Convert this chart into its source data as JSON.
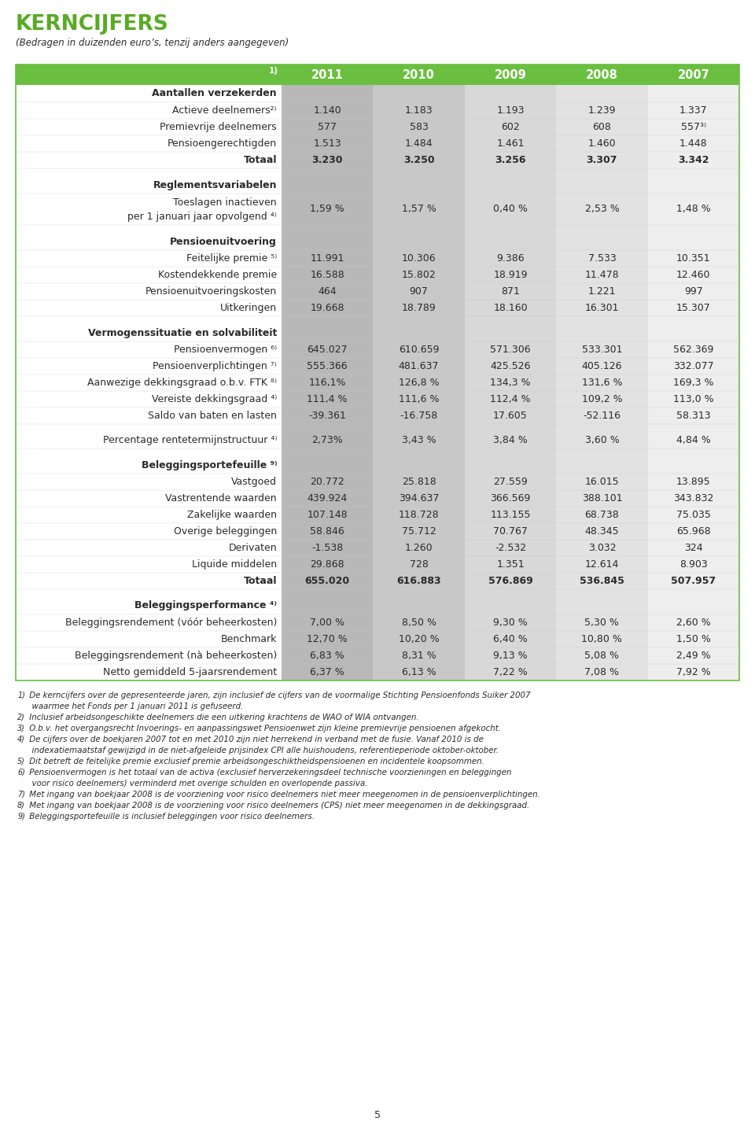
{
  "title": "KERNCIJFERS",
  "subtitle": "(Bedragen in duizenden euro’s, tenzij anders aangegeven)",
  "green": "#6abf40",
  "text_green": "#5aaa25",
  "text_dark": "#2a2a2a",
  "col_colors": [
    "#b8b8b8",
    "#c8c8c8",
    "#d8d8d8",
    "#e2e2e2",
    "#eeeeee"
  ],
  "years": [
    "2011",
    "2010",
    "2009",
    "2008",
    "2007"
  ],
  "rows": [
    {
      "label": "Aantallen verzekerden",
      "type": "header",
      "values": [
        "",
        "",
        "",
        "",
        ""
      ]
    },
    {
      "label": "Actieve deelnemers²⁾",
      "type": "data",
      "values": [
        "1.140",
        "1.183",
        "1.193",
        "1.239",
        "1.337"
      ]
    },
    {
      "label": "Premievrije deelnemers",
      "type": "data",
      "values": [
        "577",
        "583",
        "602",
        "608",
        "557³⁾"
      ]
    },
    {
      "label": "Pensioengerechtigden",
      "type": "data",
      "values": [
        "1.513",
        "1.484",
        "1.461",
        "1.460",
        "1.448"
      ]
    },
    {
      "label": "Totaal",
      "type": "total",
      "values": [
        "3.230",
        "3.250",
        "3.256",
        "3.307",
        "3.342"
      ]
    },
    {
      "label": "",
      "type": "spacer",
      "values": [
        "",
        "",
        "",
        "",
        ""
      ]
    },
    {
      "label": "Reglementsvariabelen",
      "type": "header",
      "values": [
        "",
        "",
        "",
        "",
        ""
      ]
    },
    {
      "label": "Toeslagen inactieven\nper 1 januari jaar opvolgend ⁴⁾",
      "type": "data_ml",
      "values": [
        "1,59 %",
        "1,57 %",
        "0,40 %",
        "2,53 %",
        "1,48 %"
      ]
    },
    {
      "label": "",
      "type": "spacer",
      "values": [
        "",
        "",
        "",
        "",
        ""
      ]
    },
    {
      "label": "Pensioenuitvoering",
      "type": "header",
      "values": [
        "",
        "",
        "",
        "",
        ""
      ]
    },
    {
      "label": "Feitelijke premie ⁵⁾",
      "type": "data",
      "values": [
        "11.991",
        "10.306",
        "9.386",
        "7.533",
        "10.351"
      ]
    },
    {
      "label": "Kostendekkende premie",
      "type": "data",
      "values": [
        "16.588",
        "15.802",
        "18.919",
        "11.478",
        "12.460"
      ]
    },
    {
      "label": "Pensioenuitvoeringskosten",
      "type": "data",
      "values": [
        "464",
        "907",
        "871",
        "1.221",
        "997"
      ]
    },
    {
      "label": "Uitkeringen",
      "type": "data",
      "values": [
        "19.668",
        "18.789",
        "18.160",
        "16.301",
        "15.307"
      ]
    },
    {
      "label": "",
      "type": "spacer",
      "values": [
        "",
        "",
        "",
        "",
        ""
      ]
    },
    {
      "label": "Vermogenssituatie en solvabiliteit",
      "type": "header",
      "values": [
        "",
        "",
        "",
        "",
        ""
      ]
    },
    {
      "label": "Pensioenvermogen ⁶⁾",
      "type": "data",
      "values": [
        "645.027",
        "610.659",
        "571.306",
        "533.301",
        "562.369"
      ]
    },
    {
      "label": "Pensioenverplichtingen ⁷⁾",
      "type": "data",
      "values": [
        "555.366",
        "481.637",
        "425.526",
        "405.126",
        "332.077"
      ]
    },
    {
      "label": "Aanwezige dekkingsgraad o.b.v. FTK ⁸⁾",
      "type": "data",
      "values": [
        "116,1%",
        "126,8 %",
        "134,3 %",
        "131,6 %",
        "169,3 %"
      ]
    },
    {
      "label": "Vereiste dekkingsgraad ⁴⁾",
      "type": "data",
      "values": [
        "111,4 %",
        "111,6 %",
        "112,4 %",
        "109,2 %",
        "113,0 %"
      ]
    },
    {
      "label": "Saldo van baten en lasten",
      "type": "data",
      "values": [
        "-39.361",
        "-16.758",
        "17.605",
        "-52.116",
        "58.313"
      ]
    },
    {
      "label": "",
      "type": "spacer",
      "values": [
        "",
        "",
        "",
        "",
        ""
      ]
    },
    {
      "label": "Percentage rentetermijnstructuur ⁴⁾",
      "type": "data",
      "values": [
        "2,73%",
        "3,43 %",
        "3,84 %",
        "3,60 %",
        "4,84 %"
      ]
    },
    {
      "label": "",
      "type": "spacer",
      "values": [
        "",
        "",
        "",
        "",
        ""
      ]
    },
    {
      "label": "Beleggingsportefeuille ⁹⁾",
      "type": "header",
      "values": [
        "",
        "",
        "",
        "",
        ""
      ]
    },
    {
      "label": "Vastgoed",
      "type": "data",
      "values": [
        "20.772",
        "25.818",
        "27.559",
        "16.015",
        "13.895"
      ]
    },
    {
      "label": "Vastrentende waarden",
      "type": "data",
      "values": [
        "439.924",
        "394.637",
        "366.569",
        "388.101",
        "343.832"
      ]
    },
    {
      "label": "Zakelijke waarden",
      "type": "data",
      "values": [
        "107.148",
        "118.728",
        "113.155",
        "68.738",
        "75.035"
      ]
    },
    {
      "label": "Overige beleggingen",
      "type": "data",
      "values": [
        "58.846",
        "75.712",
        "70.767",
        "48.345",
        "65.968"
      ]
    },
    {
      "label": "Derivaten",
      "type": "data",
      "values": [
        "-1.538",
        "1.260",
        "-2.532",
        "3.032",
        "324"
      ]
    },
    {
      "label": "Liquide middelen",
      "type": "data",
      "values": [
        "29.868",
        "728",
        "1.351",
        "12.614",
        "8.903"
      ]
    },
    {
      "label": "Totaal",
      "type": "total",
      "values": [
        "655.020",
        "616.883",
        "576.869",
        "536.845",
        "507.957"
      ]
    },
    {
      "label": "",
      "type": "spacer",
      "values": [
        "",
        "",
        "",
        "",
        ""
      ]
    },
    {
      "label": "Beleggingsperformance ⁴⁾",
      "type": "header",
      "values": [
        "",
        "",
        "",
        "",
        ""
      ]
    },
    {
      "label": "Beleggingsrendement (vóór beheerkosten)",
      "type": "data",
      "values": [
        "7,00 %",
        "8,50 %",
        "9,30 %",
        "5,30 %",
        "2,60 %"
      ]
    },
    {
      "label": "Benchmark",
      "type": "data",
      "values": [
        "12,70 %",
        "10,20 %",
        "6,40 %",
        "10,80 %",
        "1,50 %"
      ]
    },
    {
      "label": "Beleggingsrendement (nà beheerkosten)",
      "type": "data",
      "values": [
        "6,83 %",
        "8,31 %",
        "9,13 %",
        "5,08 %",
        "2,49 %"
      ]
    },
    {
      "label": "Netto gemiddeld 5-jaarsrendement",
      "type": "data",
      "values": [
        "6,37 %",
        "6,13 %",
        "7,22 %",
        "7,08 %",
        "7,92 %"
      ]
    }
  ],
  "footnotes": [
    [
      "1)",
      " De kerncijfers over de gepresenteerde jaren, zijn inclusief de cijfers van de voormalige Stichting Pensioenfonds Suiker 2007"
    ],
    [
      "",
      "  waarmee het Fonds per 1 januari 2011 is gefuseerd."
    ],
    [
      "2)",
      " Inclusief arbeidsongeschikte deelnemers die een uitkering krachtens de WAO of WIA ontvangen."
    ],
    [
      "3)",
      " O.b.v. het overgangsrecht Invoerings- en aanpassingswet Pensioenwet zijn kleine premievrije pensioenen afgekocht."
    ],
    [
      "4)",
      " De cijfers over de boekjaren 2007 tot en met 2010 zijn niet herrekend in verband met de fusie. Vanaf 2010 is de"
    ],
    [
      "",
      "  indexatiemaatstaf gewijzigd in de niet-afgeleide prijsindex CPI alle huishoudens, referentieperiode oktober-oktober."
    ],
    [
      "5)",
      " Dit betreft de feitelijke premie exclusief premie arbeidsongeschiktheidspensioenen en incidentele koopsommen."
    ],
    [
      "6)",
      " Pensioenvermogen is het totaal van de activa (exclusief herverzekeringsdeel technische voorzieningen en beleggingen"
    ],
    [
      "",
      "  voor risico deelnemers) verminderd met overige schulden en overlopende passiva."
    ],
    [
      "7)",
      " Met ingang van boekjaar 2008 is de voorziening voor risico deelnemers niet meer meegenomen in de pensioenverplichtingen."
    ],
    [
      "8)",
      " Met ingang van boekjaar 2008 is de voorziening voor risico deelnemers (CPS) niet meer meegenomen in de dekkingsgraad."
    ],
    [
      "9)",
      " Beleggingsportefeuille is inclusief beleggingen voor risico deelnemers."
    ]
  ]
}
